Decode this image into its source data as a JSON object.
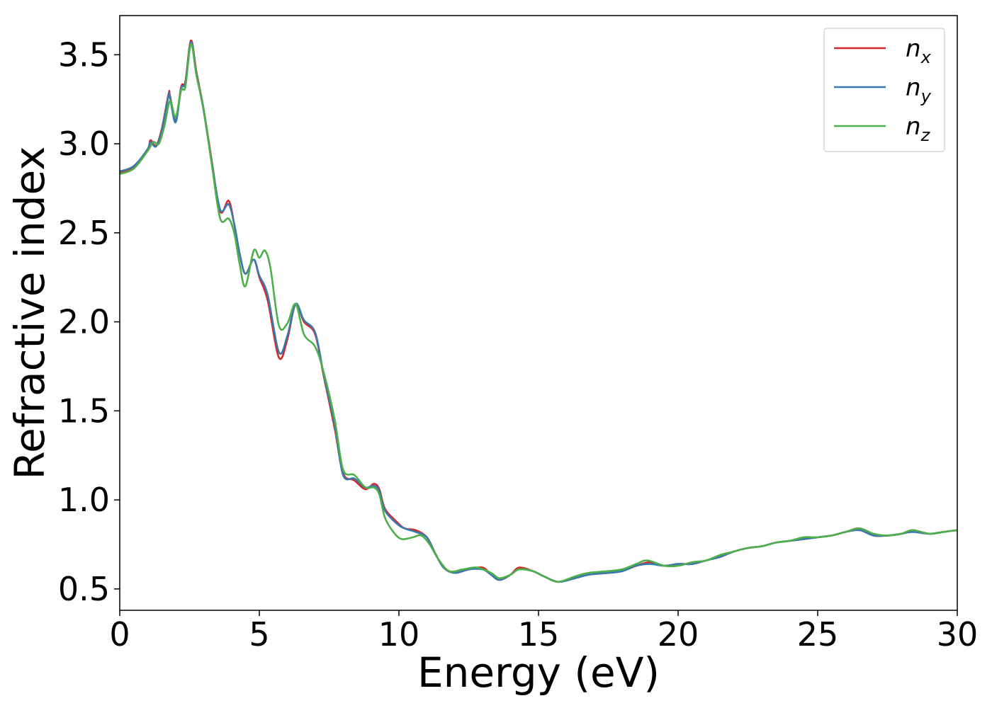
{
  "chart_data": {
    "type": "line",
    "xlabel": "Energy (eV)",
    "ylabel": "Refractive index",
    "xlim": [
      0,
      30
    ],
    "ylim": [
      0.38,
      3.72
    ],
    "xticks": [
      0,
      5,
      10,
      15,
      20,
      25,
      30
    ],
    "yticks": [
      0.5,
      1.0,
      1.5,
      2.0,
      2.5,
      3.0,
      3.5
    ],
    "xtick_labels": [
      "0",
      "5",
      "10",
      "15",
      "20",
      "25",
      "30"
    ],
    "ytick_labels": [
      "0.5",
      "1.0",
      "1.5",
      "2.0",
      "2.5",
      "3.0",
      "3.5"
    ],
    "grid": false,
    "legend": {
      "position": "top-right",
      "entries": [
        {
          "base": "n",
          "sub": "x"
        },
        {
          "base": "n",
          "sub": "y"
        },
        {
          "base": "n",
          "sub": "z"
        }
      ]
    },
    "series": [
      {
        "name": "n_x",
        "color": "#d62728",
        "points": [
          [
            0,
            2.84
          ],
          [
            0.5,
            2.87
          ],
          [
            1.0,
            2.97
          ],
          [
            1.1,
            3.02
          ],
          [
            1.3,
            2.99
          ],
          [
            1.5,
            3.08
          ],
          [
            1.75,
            3.28
          ],
          [
            1.8,
            3.27
          ],
          [
            2.0,
            3.13
          ],
          [
            2.2,
            3.32
          ],
          [
            2.35,
            3.35
          ],
          [
            2.55,
            3.58
          ],
          [
            2.75,
            3.4
          ],
          [
            3.0,
            3.2
          ],
          [
            3.3,
            2.9
          ],
          [
            3.6,
            2.62
          ],
          [
            3.9,
            2.68
          ],
          [
            4.1,
            2.55
          ],
          [
            4.3,
            2.38
          ],
          [
            4.5,
            2.27
          ],
          [
            4.8,
            2.35
          ],
          [
            5.0,
            2.25
          ],
          [
            5.3,
            2.12
          ],
          [
            5.7,
            1.8
          ],
          [
            6.0,
            1.9
          ],
          [
            6.3,
            2.1
          ],
          [
            6.6,
            2.0
          ],
          [
            7.0,
            1.93
          ],
          [
            7.3,
            1.7
          ],
          [
            7.7,
            1.4
          ],
          [
            8.0,
            1.15
          ],
          [
            8.4,
            1.11
          ],
          [
            8.8,
            1.06
          ],
          [
            9.1,
            1.09
          ],
          [
            9.3,
            1.06
          ],
          [
            9.5,
            0.95
          ],
          [
            9.9,
            0.88
          ],
          [
            10.2,
            0.84
          ],
          [
            10.6,
            0.83
          ],
          [
            11.0,
            0.79
          ],
          [
            11.3,
            0.7
          ],
          [
            11.6,
            0.62
          ],
          [
            12.0,
            0.59
          ],
          [
            12.5,
            0.61
          ],
          [
            13.0,
            0.62
          ],
          [
            13.3,
            0.58
          ],
          [
            13.6,
            0.55
          ],
          [
            14.0,
            0.58
          ],
          [
            14.3,
            0.62
          ],
          [
            14.8,
            0.6
          ],
          [
            15.2,
            0.57
          ],
          [
            15.7,
            0.54
          ],
          [
            16.3,
            0.56
          ],
          [
            16.8,
            0.58
          ],
          [
            17.5,
            0.59
          ],
          [
            18.0,
            0.6
          ],
          [
            18.5,
            0.63
          ],
          [
            19.0,
            0.65
          ],
          [
            19.5,
            0.63
          ],
          [
            20.0,
            0.64
          ],
          [
            20.5,
            0.64
          ],
          [
            21.0,
            0.66
          ],
          [
            21.5,
            0.68
          ],
          [
            22.0,
            0.71
          ],
          [
            22.5,
            0.73
          ],
          [
            23.0,
            0.74
          ],
          [
            23.5,
            0.76
          ],
          [
            24.0,
            0.77
          ],
          [
            24.5,
            0.78
          ],
          [
            25.0,
            0.79
          ],
          [
            25.5,
            0.8
          ],
          [
            26.0,
            0.82
          ],
          [
            26.5,
            0.84
          ],
          [
            27.0,
            0.8
          ],
          [
            27.5,
            0.8
          ],
          [
            28.0,
            0.81
          ],
          [
            28.4,
            0.83
          ],
          [
            29.0,
            0.81
          ],
          [
            29.5,
            0.82
          ],
          [
            30.0,
            0.83
          ]
        ]
      },
      {
        "name": "n_y",
        "color": "#3a78b0",
        "points": [
          [
            0,
            2.845
          ],
          [
            0.5,
            2.875
          ],
          [
            1.0,
            2.97
          ],
          [
            1.1,
            3.01
          ],
          [
            1.3,
            2.985
          ],
          [
            1.5,
            3.07
          ],
          [
            1.75,
            3.27
          ],
          [
            1.8,
            3.26
          ],
          [
            2.0,
            3.12
          ],
          [
            2.2,
            3.31
          ],
          [
            2.35,
            3.34
          ],
          [
            2.55,
            3.57
          ],
          [
            2.75,
            3.39
          ],
          [
            3.0,
            3.19
          ],
          [
            3.3,
            2.89
          ],
          [
            3.6,
            2.63
          ],
          [
            3.9,
            2.66
          ],
          [
            4.1,
            2.55
          ],
          [
            4.3,
            2.38
          ],
          [
            4.5,
            2.27
          ],
          [
            4.8,
            2.35
          ],
          [
            5.0,
            2.26
          ],
          [
            5.3,
            2.15
          ],
          [
            5.7,
            1.83
          ],
          [
            6.0,
            1.92
          ],
          [
            6.3,
            2.1
          ],
          [
            6.6,
            2.01
          ],
          [
            7.0,
            1.94
          ],
          [
            7.3,
            1.71
          ],
          [
            7.7,
            1.42
          ],
          [
            8.0,
            1.14
          ],
          [
            8.4,
            1.12
          ],
          [
            8.8,
            1.07
          ],
          [
            9.1,
            1.08
          ],
          [
            9.3,
            1.05
          ],
          [
            9.5,
            0.94
          ],
          [
            9.9,
            0.87
          ],
          [
            10.2,
            0.84
          ],
          [
            10.6,
            0.82
          ],
          [
            11.0,
            0.79
          ],
          [
            11.3,
            0.7
          ],
          [
            11.6,
            0.62
          ],
          [
            12.0,
            0.59
          ],
          [
            12.5,
            0.61
          ],
          [
            13.0,
            0.61
          ],
          [
            13.3,
            0.58
          ],
          [
            13.6,
            0.55
          ],
          [
            14.0,
            0.58
          ],
          [
            14.3,
            0.61
          ],
          [
            14.8,
            0.6
          ],
          [
            15.2,
            0.57
          ],
          [
            15.7,
            0.54
          ],
          [
            16.3,
            0.56
          ],
          [
            16.8,
            0.58
          ],
          [
            17.5,
            0.59
          ],
          [
            18.0,
            0.6
          ],
          [
            18.5,
            0.63
          ],
          [
            19.0,
            0.64
          ],
          [
            19.5,
            0.63
          ],
          [
            20.0,
            0.64
          ],
          [
            20.5,
            0.64
          ],
          [
            21.0,
            0.66
          ],
          [
            21.5,
            0.68
          ],
          [
            22.0,
            0.71
          ],
          [
            22.5,
            0.73
          ],
          [
            23.0,
            0.74
          ],
          [
            23.5,
            0.76
          ],
          [
            24.0,
            0.77
          ],
          [
            24.5,
            0.78
          ],
          [
            25.0,
            0.79
          ],
          [
            25.5,
            0.8
          ],
          [
            26.0,
            0.82
          ],
          [
            26.5,
            0.83
          ],
          [
            27.0,
            0.8
          ],
          [
            27.5,
            0.8
          ],
          [
            28.0,
            0.81
          ],
          [
            28.4,
            0.82
          ],
          [
            29.0,
            0.81
          ],
          [
            29.5,
            0.82
          ],
          [
            30.0,
            0.83
          ]
        ]
      },
      {
        "name": "n_z",
        "color": "#4daf4a",
        "points": [
          [
            0,
            2.83
          ],
          [
            0.5,
            2.86
          ],
          [
            1.0,
            2.96
          ],
          [
            1.2,
            3.01
          ],
          [
            1.4,
            3.0
          ],
          [
            1.6,
            3.1
          ],
          [
            1.8,
            3.24
          ],
          [
            2.0,
            3.15
          ],
          [
            2.2,
            3.3
          ],
          [
            2.35,
            3.32
          ],
          [
            2.55,
            3.56
          ],
          [
            2.75,
            3.38
          ],
          [
            3.0,
            3.2
          ],
          [
            3.3,
            2.88
          ],
          [
            3.6,
            2.58
          ],
          [
            3.9,
            2.58
          ],
          [
            4.1,
            2.5
          ],
          [
            4.3,
            2.32
          ],
          [
            4.5,
            2.2
          ],
          [
            4.8,
            2.4
          ],
          [
            5.0,
            2.36
          ],
          [
            5.2,
            2.4
          ],
          [
            5.4,
            2.3
          ],
          [
            5.7,
            1.98
          ],
          [
            6.0,
            1.99
          ],
          [
            6.3,
            2.1
          ],
          [
            6.6,
            1.93
          ],
          [
            7.0,
            1.86
          ],
          [
            7.3,
            1.72
          ],
          [
            7.7,
            1.45
          ],
          [
            8.0,
            1.17
          ],
          [
            8.4,
            1.14
          ],
          [
            8.8,
            1.07
          ],
          [
            9.1,
            1.07
          ],
          [
            9.3,
            1.03
          ],
          [
            9.5,
            0.9
          ],
          [
            9.8,
            0.82
          ],
          [
            10.1,
            0.78
          ],
          [
            10.5,
            0.79
          ],
          [
            10.8,
            0.8
          ],
          [
            11.1,
            0.75
          ],
          [
            11.4,
            0.67
          ],
          [
            11.8,
            0.6
          ],
          [
            12.3,
            0.61
          ],
          [
            12.8,
            0.62
          ],
          [
            13.3,
            0.59
          ],
          [
            13.6,
            0.56
          ],
          [
            14.0,
            0.58
          ],
          [
            14.3,
            0.61
          ],
          [
            14.8,
            0.6
          ],
          [
            15.2,
            0.57
          ],
          [
            15.7,
            0.54
          ],
          [
            16.3,
            0.57
          ],
          [
            16.8,
            0.59
          ],
          [
            17.5,
            0.6
          ],
          [
            18.0,
            0.61
          ],
          [
            18.5,
            0.64
          ],
          [
            18.9,
            0.66
          ],
          [
            19.5,
            0.63
          ],
          [
            20.0,
            0.63
          ],
          [
            20.5,
            0.65
          ],
          [
            21.0,
            0.66
          ],
          [
            21.5,
            0.69
          ],
          [
            22.0,
            0.71
          ],
          [
            22.5,
            0.73
          ],
          [
            23.0,
            0.74
          ],
          [
            23.5,
            0.76
          ],
          [
            24.0,
            0.77
          ],
          [
            24.5,
            0.79
          ],
          [
            25.0,
            0.79
          ],
          [
            25.5,
            0.8
          ],
          [
            26.0,
            0.82
          ],
          [
            26.5,
            0.84
          ],
          [
            27.0,
            0.81
          ],
          [
            27.5,
            0.8
          ],
          [
            28.0,
            0.81
          ],
          [
            28.4,
            0.83
          ],
          [
            29.0,
            0.81
          ],
          [
            29.5,
            0.82
          ],
          [
            30.0,
            0.83
          ]
        ]
      }
    ]
  }
}
